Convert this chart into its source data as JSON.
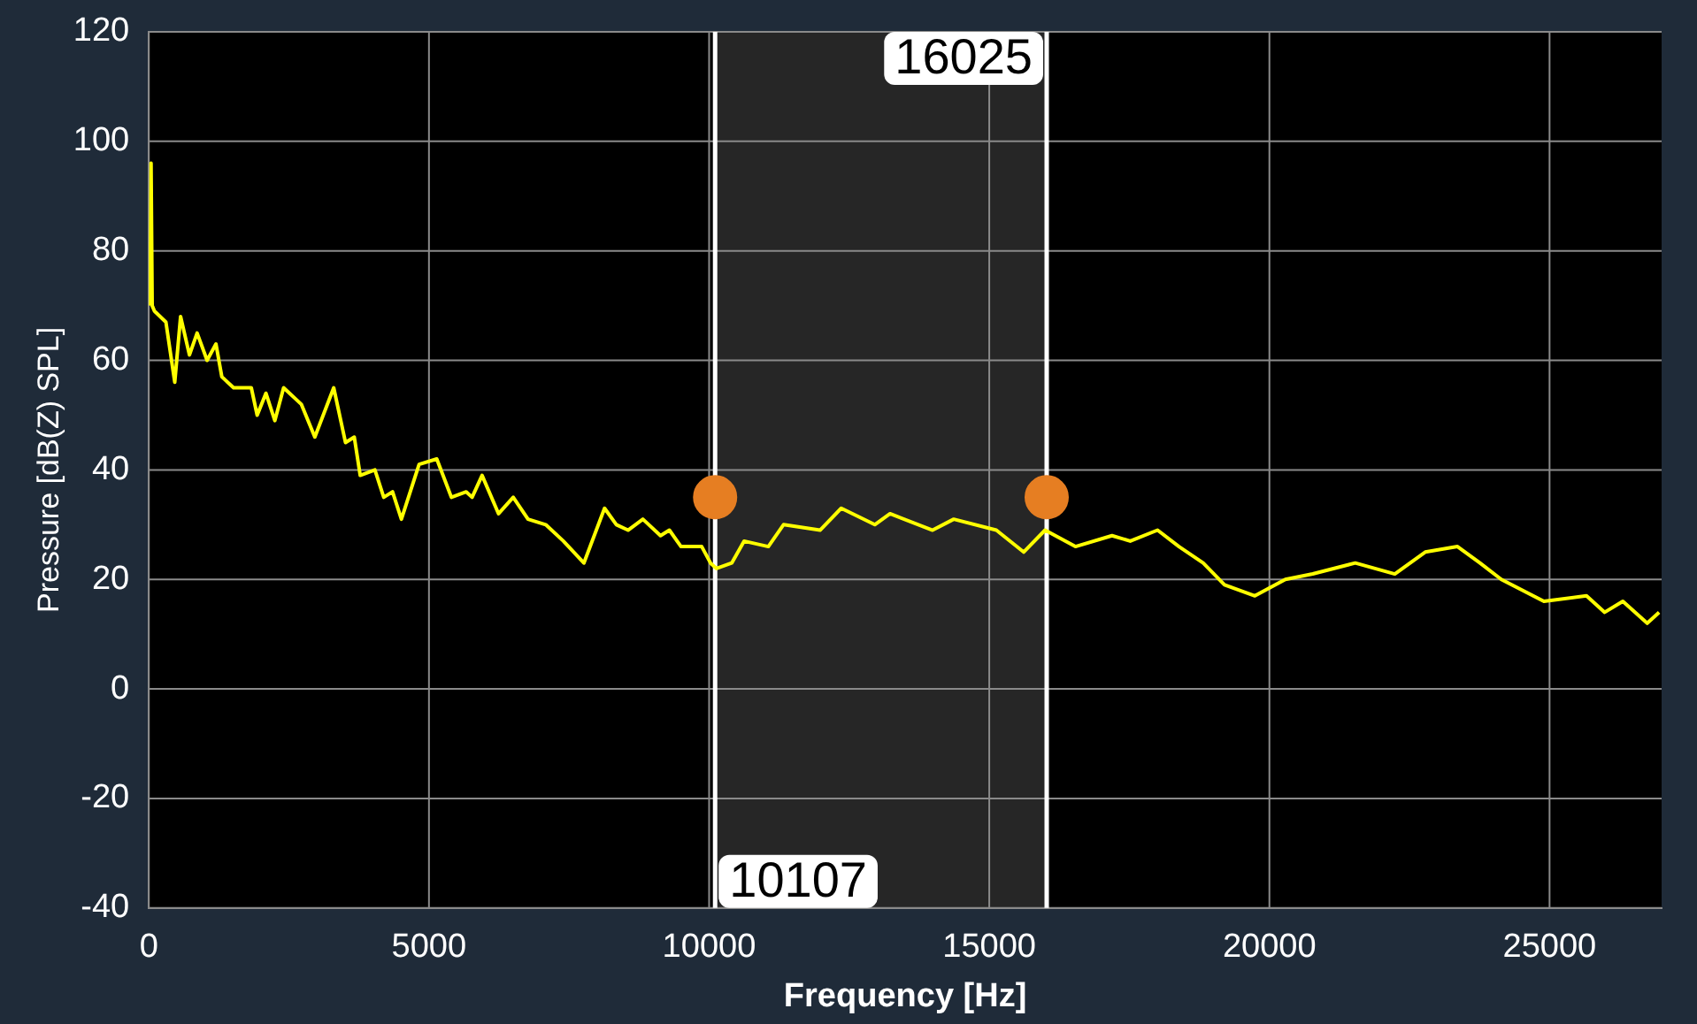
{
  "chart_data": {
    "type": "line",
    "xlabel": "Frequency [Hz]",
    "ylabel": "Pressure [dB(Z) SPL]",
    "xlim": [
      0,
      27000
    ],
    "xticks": [
      0,
      5000,
      10000,
      15000,
      20000,
      25000
    ],
    "ylim": [
      -40,
      120
    ],
    "yticks": [
      -40,
      -20,
      0,
      20,
      40,
      60,
      80,
      100,
      120
    ],
    "grid": true,
    "legend": false,
    "marker": "none",
    "line_style": "solid",
    "series": [
      {
        "color": "#ffff00",
        "x": [
          20,
          40,
          60,
          100,
          305,
          463,
          567,
          725,
          862,
          1040,
          1198,
          1303,
          1513,
          1829,
          1934,
          2090,
          2249,
          2406,
          2721,
          2963,
          3300,
          3510,
          3667,
          3773,
          4035,
          4193,
          4350,
          4508,
          4824,
          5139,
          5400,
          5665,
          5770,
          5948,
          6242,
          6504,
          6768,
          7084,
          7399,
          7765,
          8134,
          8345,
          8553,
          8818,
          9133,
          9291,
          9499,
          9868,
          10025,
          10130,
          10404,
          10624,
          11057,
          11328,
          11980,
          12358,
          12957,
          13229,
          13988,
          14366,
          15126,
          15614,
          15996,
          16538,
          17191,
          17516,
          18004,
          18386,
          18818,
          19199,
          19741,
          20284,
          20773,
          21532,
          22238,
          22781,
          23357,
          23758,
          24139,
          24899,
          25659,
          25984,
          26308,
          26743,
          26955
        ],
        "values": [
          70,
          96,
          70,
          69,
          67,
          56,
          68,
          61,
          65,
          60,
          63,
          57,
          55,
          55,
          50,
          54,
          49,
          55,
          52,
          46,
          55,
          45,
          46,
          39,
          40,
          35,
          36,
          31,
          41,
          42,
          35,
          36,
          35,
          39,
          32,
          35,
          31,
          30,
          27,
          23,
          33,
          30,
          29,
          31,
          28,
          29,
          26,
          26,
          23,
          22,
          23,
          27,
          26,
          30,
          29,
          33,
          30,
          32,
          29,
          31,
          29,
          25,
          29,
          26,
          28,
          27,
          29,
          26,
          23,
          19,
          17,
          20,
          21,
          23,
          21,
          25,
          26,
          23,
          20,
          16,
          17,
          14,
          16,
          12,
          14
        ]
      },
      {
        "type": "scatter",
        "marker": "circle",
        "color": "#e67e22",
        "x": [
          10107,
          16025
        ],
        "values": [
          35,
          35
        ]
      }
    ],
    "ref_lines": [
      {
        "axis": "x",
        "value": 10107,
        "label": "10107",
        "color": "#ffffff"
      },
      {
        "axis": "x",
        "value": 16025,
        "label": "16025",
        "color": "#ffffff"
      }
    ],
    "bands": [
      {
        "axis": "x",
        "from": 10107,
        "to": 16025,
        "color": "#262626"
      }
    ]
  }
}
